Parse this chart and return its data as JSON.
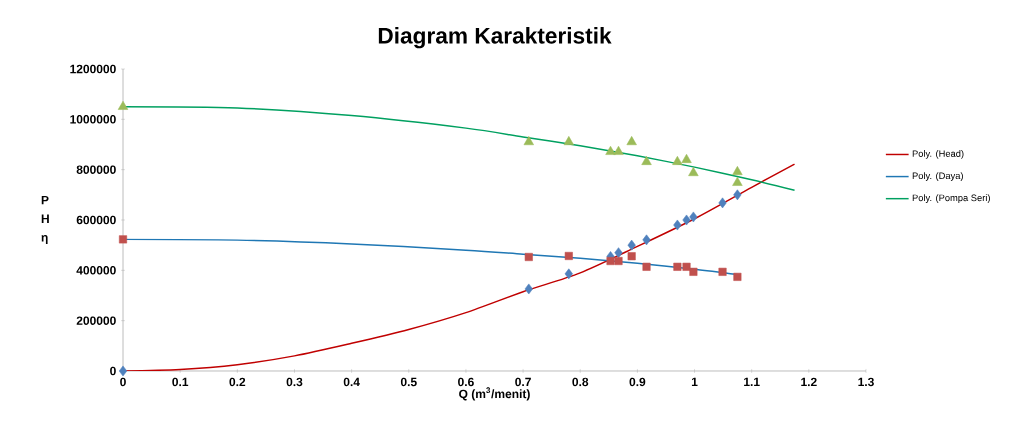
{
  "chart_data": {
    "type": "scatter",
    "title": "Diagram Karakteristik",
    "xlabel": "Q (m$^{3}$/menit)",
    "ylabel": "P H η",
    "xlim": [
      0,
      1.3
    ],
    "xticks": [
      0,
      0.1,
      0.2,
      0.3,
      0.4,
      0.5,
      0.6,
      0.7,
      0.8,
      0.9,
      1,
      1.1,
      1.2,
      1.3
    ],
    "ylim": [
      0,
      1200000
    ],
    "yticks": [
      0,
      200000,
      400000,
      600000,
      800000,
      1000000,
      1200000
    ],
    "grid": false,
    "legend": "right",
    "series": [
      {
        "marker": "diamond",
        "color": "#4f81bd",
        "x": [
          0,
          0.71,
          0.78,
          0.853,
          0.867,
          0.89,
          0.916,
          0.97,
          0.986,
          0.998,
          1.049,
          1.075
        ],
        "values": [
          0,
          326000,
          386000,
          455000,
          470000,
          500000,
          521000,
          580000,
          600000,
          612000,
          668000,
          700000
        ]
      },
      {
        "marker": "square",
        "color": "#c0504d",
        "x": [
          0,
          0.71,
          0.78,
          0.853,
          0.867,
          0.89,
          0.916,
          0.97,
          0.986,
          0.998,
          1.049,
          1.075
        ],
        "values": [
          523000,
          453000,
          457000,
          437000,
          437000,
          456000,
          414000,
          414000,
          414000,
          394000,
          394000,
          374000
        ]
      },
      {
        "marker": "triangle",
        "color": "#9bbb59",
        "x": [
          0,
          0.71,
          0.78,
          0.853,
          0.867,
          0.89,
          0.916,
          0.97,
          0.986,
          0.998,
          1.075,
          1.075
        ],
        "values": [
          1050000,
          910000,
          910000,
          871000,
          871000,
          910000,
          831000,
          831000,
          839000,
          787000,
          791000,
          748000
        ]
      },
      {
        "type": "line",
        "name": "Poly. (Head)",
        "color": "#c00000",
        "marker": "none",
        "x": [
          0,
          0.1,
          0.2,
          0.3,
          0.4,
          0.5,
          0.6,
          0.7,
          0.8,
          0.9,
          1.0,
          1.1,
          1.175
        ],
        "values": [
          0,
          6000,
          25000,
          60000,
          110000,
          165000,
          232000,
          315000,
          390000,
          495000,
          605000,
          730000,
          822000
        ]
      },
      {
        "type": "line",
        "name": "Poly. (Daya)",
        "color": "#1f77b4",
        "marker": "none",
        "x": [
          0,
          0.2,
          0.4,
          0.6,
          0.7,
          0.8,
          0.9,
          1.0,
          1.075
        ],
        "values": [
          523000,
          520000,
          505000,
          480000,
          464000,
          448000,
          428000,
          404000,
          383000
        ]
      },
      {
        "type": "line",
        "name": "Poly. (Pompa Seri)",
        "color": "#00a060",
        "marker": "none",
        "x": [
          0,
          0.2,
          0.4,
          0.6,
          0.7,
          0.8,
          0.9,
          1.0,
          1.1,
          1.175
        ],
        "values": [
          1050000,
          1045000,
          1015000,
          965000,
          930000,
          895000,
          855000,
          810000,
          760000,
          718000
        ]
      }
    ]
  }
}
